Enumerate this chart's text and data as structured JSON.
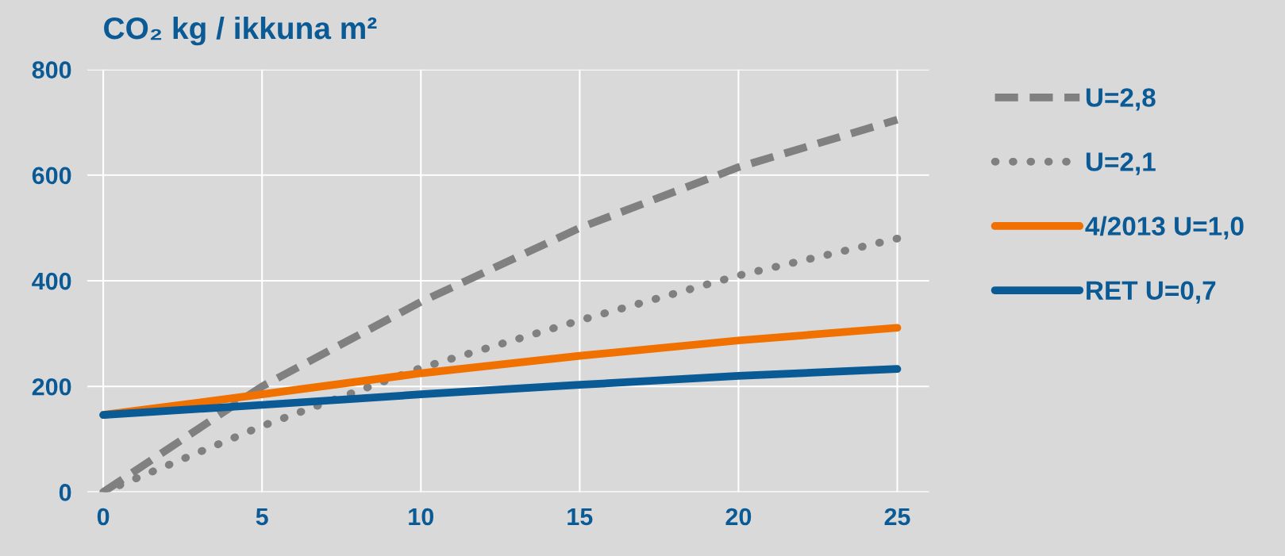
{
  "chart_data": {
    "type": "line",
    "title": "CO₂ kg / ikkuna m²",
    "x": [
      0,
      5,
      10,
      15,
      20,
      25
    ],
    "series": [
      {
        "name": "U=2,8",
        "color": "#808080",
        "line_style": "dashed",
        "values": [
          0,
          200,
          360,
          500,
          615,
          705
        ]
      },
      {
        "name": "U=2,1",
        "color": "#808080",
        "line_style": "dotted",
        "values": [
          0,
          125,
          235,
          325,
          410,
          480
        ]
      },
      {
        "name": "4/2013 U=1,0",
        "color": "#f07000",
        "line_style": "solid",
        "values": [
          146,
          185,
          225,
          258,
          287,
          311
        ]
      },
      {
        "name": "RET U=0,7",
        "color": "#0a5a96",
        "line_style": "solid",
        "values": [
          146,
          165,
          185,
          203,
          220,
          233
        ]
      }
    ],
    "xlim": [
      -0.5,
      26
    ],
    "xticks": [
      0,
      5,
      10,
      15,
      20,
      25
    ],
    "ylim": [
      0,
      800
    ],
    "yticks": [
      0,
      200,
      400,
      600,
      800
    ],
    "grid": true,
    "legend": "right"
  }
}
